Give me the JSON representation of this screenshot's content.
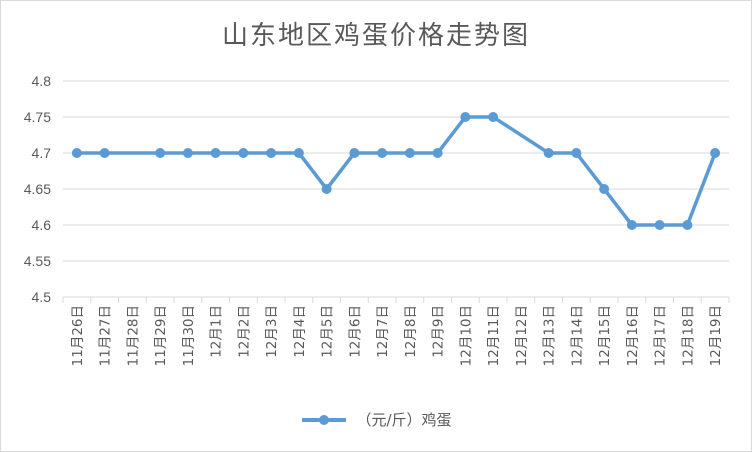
{
  "chart_data": {
    "type": "line",
    "title": "山东地区鸡蛋价格走势图",
    "categories": [
      "11月26日",
      "11月27日",
      "11月28日",
      "11月29日",
      "11月30日",
      "12月1日",
      "12月2日",
      "12月3日",
      "12月4日",
      "12月5日",
      "12月6日",
      "12月7日",
      "12月8日",
      "12月9日",
      "12月10日",
      "12月11日",
      "12月12日",
      "12月13日",
      "12月14日",
      "12月15日",
      "12月16日",
      "12月17日",
      "12月18日",
      "12月19日"
    ],
    "series": [
      {
        "name": "（元/斤）鸡蛋",
        "color": "#5b9bd5",
        "values": [
          4.7,
          4.7,
          null,
          4.7,
          4.7,
          4.7,
          4.7,
          4.7,
          4.7,
          4.65,
          4.7,
          4.7,
          4.7,
          4.7,
          4.75,
          4.75,
          null,
          4.7,
          4.7,
          4.65,
          4.6,
          4.6,
          4.6,
          4.7
        ]
      }
    ],
    "yticks": [
      "4.5",
      "4.55",
      "4.6",
      "4.65",
      "4.7",
      "4.75",
      "4.8"
    ],
    "ylim": [
      4.5,
      4.8
    ],
    "grid": true,
    "legend": "bottom"
  }
}
